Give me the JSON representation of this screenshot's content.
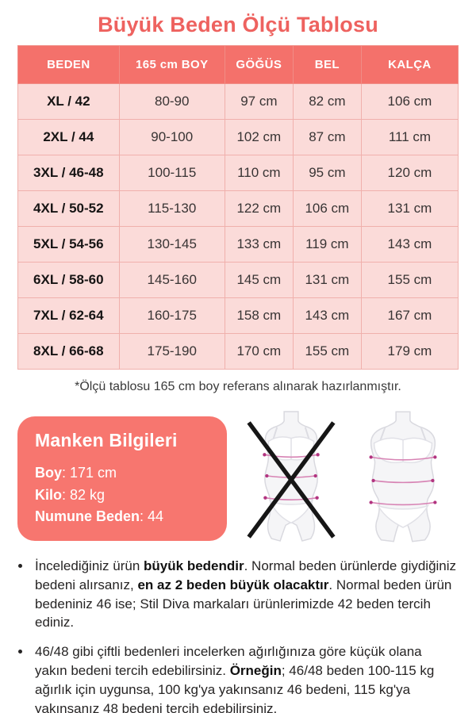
{
  "title": "Büyük Beden Ölçü Tablosu",
  "table": {
    "headers": [
      "BEDEN",
      "165 cm BOY",
      "GÖĞÜS",
      "BEL",
      "KALÇA"
    ],
    "rows": [
      [
        "XL / 42",
        "80-90",
        "97 cm",
        "82 cm",
        "106 cm"
      ],
      [
        "2XL / 44",
        "90-100",
        "102 cm",
        "87 cm",
        "111 cm"
      ],
      [
        "3XL / 46-48",
        "100-115",
        "110 cm",
        "95 cm",
        "120 cm"
      ],
      [
        "4XL / 50-52",
        "115-130",
        "122 cm",
        "106 cm",
        "131 cm"
      ],
      [
        "5XL / 54-56",
        "130-145",
        "133 cm",
        "119 cm",
        "143 cm"
      ],
      [
        "6XL / 58-60",
        "145-160",
        "145 cm",
        "131 cm",
        "155 cm"
      ],
      [
        "7XL / 62-64",
        "160-175",
        "158 cm",
        "143 cm",
        "167 cm"
      ],
      [
        "8XL / 66-68",
        "175-190",
        "170 cm",
        "155 cm",
        "179 cm"
      ]
    ]
  },
  "footnote": "*Ölçü tablosu 165 cm boy referans alınarak hazırlanmıştır.",
  "model_info": {
    "title": "Manken Bilgileri",
    "fields": [
      {
        "label": "Boy",
        "value": "171 cm"
      },
      {
        "label": "Kilo",
        "value": "82 kg"
      },
      {
        "label": "Numune Beden",
        "value": "44"
      }
    ]
  },
  "figures": {
    "left_meaning": "normal-size-figure-crossed-out",
    "right_meaning": "plus-size-figure"
  },
  "bullets": [
    [
      {
        "text": "İncelediğiniz ürün ",
        "bold": false
      },
      {
        "text": "büyük bedendir",
        "bold": true
      },
      {
        "text": ". Normal beden ürünlerde giydiğiniz bedeni alırsanız, ",
        "bold": false
      },
      {
        "text": "en az 2 beden büyük olacaktır",
        "bold": true
      },
      {
        "text": ". Normal beden ürün bedeniniz 46 ise; Stil Diva markaları ürünlerimizde 42 beden tercih ediniz.",
        "bold": false
      }
    ],
    [
      {
        "text": "46/48 gibi çiftli bedenleri incelerken ağırlığınıza göre küçük olana yakın bedeni tercih edebilirsiniz. ",
        "bold": false
      },
      {
        "text": "Örneğin",
        "bold": true
      },
      {
        "text": "; 46/48 beden 100-115 kg ağırlık için uygunsa, 100 kg'ya yakınsanız 46 bedeni, 115 kg'ya yakınsanız 48 bedeni tercih edebilirsiniz.",
        "bold": false
      }
    ]
  ],
  "colors": {
    "accent": "#f4716b",
    "title_text": "#ee625f",
    "row_bg": "#fbdbd9",
    "table_border": "#f0b0ac",
    "header_text": "#ffffff",
    "body_text": "#262424",
    "model_card_bg": "#f7766f",
    "measure_line": "#d783b4",
    "measure_dot": "#b23480",
    "figure_outline": "#d9d9df",
    "figure_fill": "#f5f5f7",
    "cross": "#161616"
  }
}
